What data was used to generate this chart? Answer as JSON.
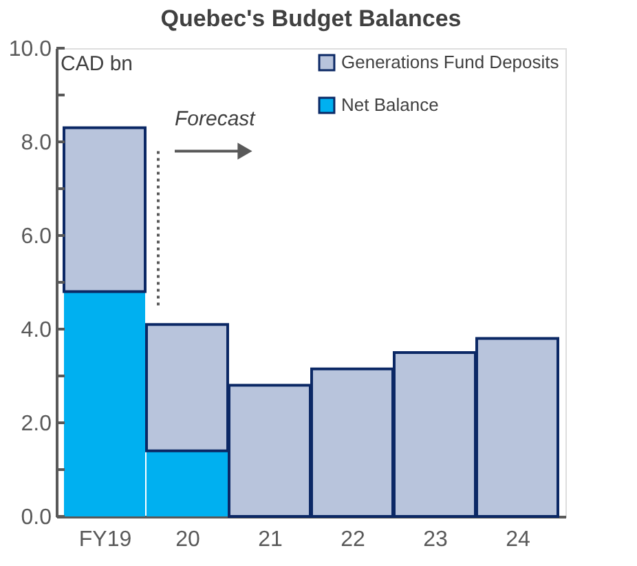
{
  "chart_data": {
    "type": "bar",
    "title": "Quebec's Budget Balances",
    "ylabel": "CAD bn",
    "categories": [
      "FY19",
      "20",
      "21",
      "22",
      "23",
      "24"
    ],
    "stacked": true,
    "series": [
      {
        "name": "Net Balance",
        "color": "#00b0f0",
        "values": [
          4.8,
          1.4,
          0,
          0,
          0,
          0
        ]
      },
      {
        "name": "Generations Fund Deposits",
        "color": "#b8c4dc",
        "values": [
          3.5,
          2.7,
          2.8,
          3.15,
          3.5,
          3.8
        ]
      }
    ],
    "ylim": [
      0,
      10
    ],
    "yticks": [
      {
        "value": 0,
        "label": "0.0"
      },
      {
        "value": 1,
        "label": null
      },
      {
        "value": 2,
        "label": "2.0"
      },
      {
        "value": 3,
        "label": null
      },
      {
        "value": 4,
        "label": "4.0"
      },
      {
        "value": 5,
        "label": null
      },
      {
        "value": 6,
        "label": "6.0"
      },
      {
        "value": 7,
        "label": null
      },
      {
        "value": 8,
        "label": "8.0"
      },
      {
        "value": 9,
        "label": null
      },
      {
        "value": 10,
        "label": "10.0"
      }
    ],
    "ref_lines": [
      {
        "axis": "x",
        "value": "20",
        "label": "Forecast",
        "line_style": "dotted",
        "color": "#595959"
      }
    ],
    "legend": "top right",
    "grid": false
  }
}
